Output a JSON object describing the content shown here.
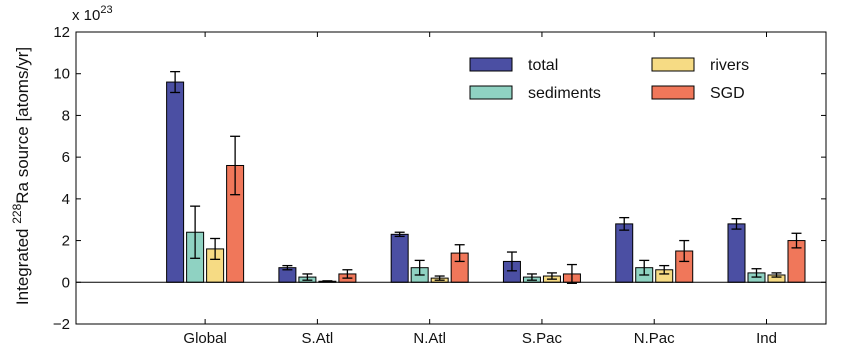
{
  "chart_data": {
    "type": "bar",
    "ylabel_prefix": "Integrated ",
    "ylabel_sup": "228",
    "ylabel_suffix": "Ra source [atoms/yr]",
    "xlabel": "",
    "scale_base": "x 10",
    "scale_exp": "23",
    "ylim": [
      -2,
      12
    ],
    "yticks": [
      -2,
      0,
      2,
      4,
      6,
      8,
      10,
      12
    ],
    "categories": [
      "Global",
      "S.Atl",
      "N.Atl",
      "S.Pac",
      "N.Pac",
      "Ind"
    ],
    "series": [
      {
        "name": "total",
        "color": "#4b4fa3",
        "values": [
          9.6,
          0.7,
          2.3,
          1.0,
          2.8,
          2.8
        ],
        "errors": [
          0.5,
          0.1,
          0.1,
          0.45,
          0.3,
          0.25
        ]
      },
      {
        "name": "sediments",
        "color": "#8fd2c2",
        "values": [
          2.4,
          0.25,
          0.7,
          0.25,
          0.7,
          0.45
        ],
        "errors": [
          1.25,
          0.15,
          0.35,
          0.15,
          0.35,
          0.2
        ]
      },
      {
        "name": "rivers",
        "color": "#f6db84",
        "values": [
          1.6,
          0.05,
          0.2,
          0.3,
          0.6,
          0.35
        ],
        "errors": [
          0.5,
          0.02,
          0.1,
          0.15,
          0.2,
          0.1
        ]
      },
      {
        "name": "SGD",
        "color": "#f0775a",
        "values": [
          5.6,
          0.4,
          1.4,
          0.4,
          1.5,
          2.0
        ],
        "errors": [
          1.4,
          0.2,
          0.4,
          0.45,
          0.5,
          0.35
        ]
      }
    ],
    "legend_position": "top-right",
    "grid": false
  }
}
